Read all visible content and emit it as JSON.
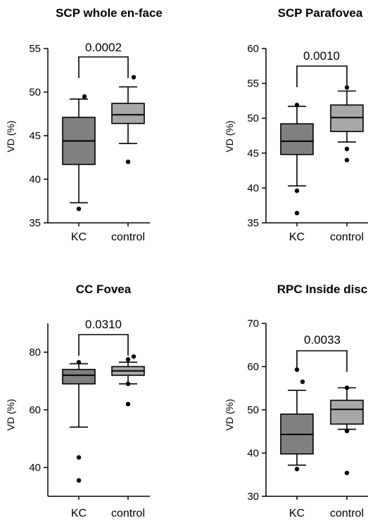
{
  "colors": {
    "kc_box": "#808080",
    "control_box": "#a8a8a8",
    "line": "#000000"
  },
  "chart_data": [
    {
      "type": "box",
      "title": "SCP whole en-face",
      "ylabel": "VD (%)",
      "ylim": [
        35,
        55
      ],
      "yticks": [
        35,
        40,
        45,
        50,
        55
      ],
      "categories": [
        "KC",
        "control"
      ],
      "p_value": "0.0002",
      "boxes": [
        {
          "name": "KC",
          "whisker_low": 37.3,
          "q1": 41.7,
          "median": 44.4,
          "q3": 47.1,
          "whisker_high": 49.2,
          "outliers": [
            36.6,
            49.5
          ]
        },
        {
          "name": "control",
          "whisker_low": 44.1,
          "q1": 46.4,
          "median": 47.4,
          "q3": 48.7,
          "whisker_high": 50.6,
          "outliers": [
            42.0,
            51.7
          ]
        }
      ]
    },
    {
      "type": "box",
      "title": "SCP Parafovea",
      "ylabel": "VD (%)",
      "ylim": [
        35,
        60
      ],
      "yticks": [
        35,
        40,
        45,
        50,
        55,
        60
      ],
      "categories": [
        "KC",
        "control"
      ],
      "p_value": "0.0010",
      "boxes": [
        {
          "name": "KC",
          "whisker_low": 40.3,
          "q1": 44.8,
          "median": 46.7,
          "q3": 49.2,
          "whisker_high": 51.7,
          "outliers": [
            36.4,
            39.6,
            51.9
          ]
        },
        {
          "name": "control",
          "whisker_low": 46.6,
          "q1": 48.1,
          "median": 50.1,
          "q3": 51.9,
          "whisker_high": 53.9,
          "outliers": [
            44.0,
            45.6,
            54.4
          ]
        }
      ]
    },
    {
      "type": "box",
      "title": "CC Fovea",
      "ylabel": "VD (%)",
      "ylim": [
        30,
        90
      ],
      "yticks": [
        40,
        60,
        80
      ],
      "categories": [
        "KC",
        "control"
      ],
      "p_value": "0.0310",
      "boxes": [
        {
          "name": "KC",
          "whisker_low": 54.0,
          "q1": 69.0,
          "median": 72.0,
          "q3": 74.0,
          "whisker_high": 76.0,
          "outliers": [
            35.5,
            43.5,
            76.5
          ]
        },
        {
          "name": "control",
          "whisker_low": 69.0,
          "q1": 72.0,
          "median": 73.5,
          "q3": 75.0,
          "whisker_high": 76.5,
          "outliers": [
            62.0,
            69.0,
            77.5,
            78.5
          ]
        }
      ]
    },
    {
      "type": "box",
      "title": "RPC Inside disc",
      "ylabel": "VD (%)",
      "ylim": [
        30,
        70
      ],
      "yticks": [
        30,
        40,
        50,
        60,
        70
      ],
      "categories": [
        "KC",
        "control"
      ],
      "p_value": "0.0033",
      "boxes": [
        {
          "name": "KC",
          "whisker_low": 37.2,
          "q1": 39.8,
          "median": 44.3,
          "q3": 49.0,
          "whisker_high": 54.5,
          "outliers": [
            36.3,
            56.5,
            59.3
          ]
        },
        {
          "name": "control",
          "whisker_low": 45.5,
          "q1": 46.7,
          "median": 50.1,
          "q3": 52.2,
          "whisker_high": 55.1,
          "outliers": [
            35.4,
            45.1,
            55.1
          ]
        }
      ]
    }
  ]
}
